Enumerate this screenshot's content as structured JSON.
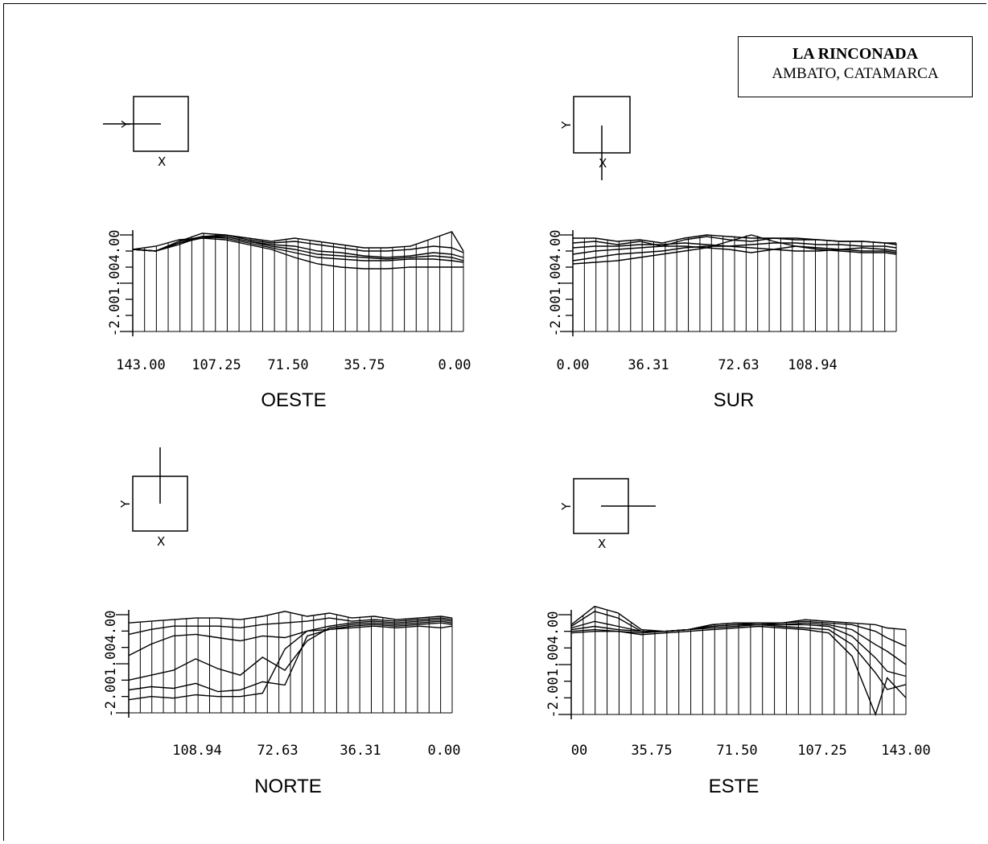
{
  "title": {
    "main": "LA RINCONADA",
    "sub": "AMBATO, CATAMARCA"
  },
  "colors": {
    "line": "#000000",
    "background": "#ffffff"
  },
  "orientation_inset": {
    "x_letter": "X",
    "y_letter": "Y"
  },
  "chart_data": [
    {
      "type": "line",
      "name": "OESTE",
      "title": "OESTE",
      "orientation": "left",
      "x_tick_labels": [
        "143.00",
        "107.25",
        "71.50",
        "35.75",
        "0.00"
      ],
      "y_tick_labels": [
        "-2.00",
        "1.00",
        "4.00"
      ],
      "ylim": [
        -2,
        4
      ],
      "xlim": [
        143,
        0
      ],
      "series": [
        {
          "x": [
            143,
            133,
            123,
            113,
            103,
            93,
            83,
            73,
            63,
            53,
            43,
            33,
            23,
            13,
            5,
            0
          ],
          "values": [
            3.1,
            3.3,
            3.7,
            3.8,
            3.7,
            3.4,
            3.1,
            2.6,
            2.2,
            2.0,
            1.9,
            1.9,
            2.0,
            2.0,
            2.0,
            2.0
          ]
        },
        {
          "x": [
            143,
            133,
            123,
            113,
            103,
            93,
            83,
            73,
            63,
            53,
            43,
            33,
            23,
            13,
            5,
            0
          ],
          "values": [
            3.1,
            3.0,
            3.6,
            3.9,
            3.8,
            3.5,
            3.2,
            2.9,
            2.6,
            2.5,
            2.4,
            2.4,
            2.5,
            2.5,
            2.4,
            2.3
          ]
        },
        {
          "x": [
            143,
            133,
            123,
            113,
            103,
            93,
            83,
            73,
            63,
            53,
            43,
            33,
            23,
            13,
            5,
            0
          ],
          "values": [
            3.1,
            3.0,
            3.5,
            3.8,
            3.9,
            3.6,
            3.4,
            3.3,
            3.0,
            2.9,
            2.7,
            2.6,
            2.7,
            2.9,
            2.8,
            2.6
          ]
        },
        {
          "x": [
            143,
            133,
            123,
            113,
            103,
            93,
            83,
            73,
            63,
            53,
            43,
            33,
            23,
            13,
            5,
            0
          ],
          "values": [
            3.1,
            3.0,
            3.4,
            3.9,
            4.0,
            3.7,
            3.5,
            3.6,
            3.4,
            3.2,
            3.0,
            3.0,
            3.1,
            3.3,
            3.2,
            2.9
          ]
        },
        {
          "x": [
            143,
            133,
            123,
            113,
            103,
            93,
            83,
            73,
            63,
            53,
            43,
            33,
            23,
            13,
            5,
            0
          ],
          "values": [
            3.1,
            3.0,
            3.6,
            4.1,
            4.0,
            3.8,
            3.6,
            3.8,
            3.6,
            3.4,
            3.2,
            3.2,
            3.3,
            3.8,
            4.2,
            3.0
          ]
        },
        {
          "x": [
            143,
            133,
            123,
            113,
            103,
            93,
            83,
            73,
            63,
            53,
            43,
            33,
            23,
            13,
            5,
            0
          ],
          "values": [
            3.1,
            3.0,
            3.5,
            3.9,
            3.9,
            3.6,
            3.3,
            3.1,
            2.8,
            2.7,
            2.6,
            2.5,
            2.6,
            2.7,
            2.6,
            2.4
          ]
        }
      ]
    },
    {
      "type": "line",
      "name": "SUR",
      "title": "SUR",
      "orientation": "down",
      "x_tick_labels": [
        "0.00",
        "36.31",
        "72.63",
        "108.94"
      ],
      "y_tick_labels": [
        "-2.00",
        "1.00",
        "4.00"
      ],
      "ylim": [
        -2,
        4
      ],
      "xlim": [
        0,
        145
      ],
      "series": [
        {
          "x": [
            0,
            10,
            20,
            30,
            40,
            50,
            60,
            70,
            80,
            90,
            100,
            110,
            120,
            130,
            140,
            145
          ],
          "values": [
            2.2,
            2.3,
            2.4,
            2.6,
            2.8,
            3.0,
            3.2,
            3.6,
            4.0,
            3.6,
            3.3,
            3.1,
            3.0,
            2.9,
            2.9,
            2.8
          ]
        },
        {
          "x": [
            0,
            10,
            20,
            30,
            40,
            50,
            60,
            70,
            80,
            90,
            100,
            110,
            120,
            130,
            140,
            145
          ],
          "values": [
            2.4,
            2.6,
            2.8,
            2.9,
            3.0,
            3.2,
            3.3,
            3.3,
            3.2,
            3.1,
            3.0,
            3.0,
            3.1,
            3.0,
            3.0,
            2.9
          ]
        },
        {
          "x": [
            0,
            10,
            20,
            30,
            40,
            50,
            60,
            70,
            80,
            90,
            100,
            110,
            120,
            130,
            140,
            145
          ],
          "values": [
            2.8,
            3.0,
            3.1,
            3.2,
            3.3,
            3.3,
            3.2,
            3.1,
            2.9,
            3.1,
            3.3,
            3.2,
            3.1,
            3.2,
            3.1,
            3.0
          ]
        },
        {
          "x": [
            0,
            10,
            20,
            30,
            40,
            50,
            60,
            70,
            80,
            90,
            100,
            110,
            120,
            130,
            140,
            145
          ],
          "values": [
            3.2,
            3.3,
            3.3,
            3.4,
            3.4,
            3.5,
            3.4,
            3.3,
            3.4,
            3.5,
            3.5,
            3.4,
            3.4,
            3.3,
            3.3,
            3.2
          ]
        },
        {
          "x": [
            0,
            10,
            20,
            30,
            40,
            50,
            60,
            70,
            80,
            90,
            100,
            110,
            120,
            130,
            140,
            145
          ],
          "values": [
            3.5,
            3.6,
            3.4,
            3.6,
            3.3,
            3.7,
            3.9,
            3.7,
            3.6,
            3.8,
            3.7,
            3.7,
            3.6,
            3.6,
            3.5,
            3.4
          ]
        },
        {
          "x": [
            0,
            10,
            20,
            30,
            40,
            50,
            60,
            70,
            80,
            90,
            100,
            110,
            120,
            130,
            140,
            145
          ],
          "values": [
            3.8,
            3.8,
            3.6,
            3.7,
            3.5,
            3.8,
            4.0,
            3.9,
            3.8,
            3.8,
            3.8,
            3.7,
            3.6,
            3.6,
            3.5,
            3.5
          ]
        }
      ]
    },
    {
      "type": "line",
      "name": "NORTE",
      "title": "NORTE",
      "orientation": "up",
      "x_tick_labels": [
        "108.94",
        "72.63",
        "36.31",
        "0.00"
      ],
      "y_tick_labels": [
        "-2.00",
        "1.00",
        "4.00"
      ],
      "ylim": [
        -2,
        4
      ],
      "xlim": [
        145,
        0
      ],
      "series": [
        {
          "x": [
            145,
            135,
            125,
            115,
            105,
            95,
            85,
            75,
            65,
            55,
            45,
            35,
            25,
            15,
            5,
            0
          ],
          "values": [
            -1.2,
            -1.0,
            -1.1,
            -0.9,
            -1.0,
            -1.0,
            -0.8,
            1.9,
            3.0,
            3.1,
            3.2,
            3.3,
            3.2,
            3.3,
            3.2,
            3.3
          ]
        },
        {
          "x": [
            145,
            135,
            125,
            115,
            105,
            95,
            85,
            75,
            65,
            55,
            45,
            35,
            25,
            15,
            5,
            0
          ],
          "values": [
            -0.6,
            -0.4,
            -0.5,
            -0.2,
            -0.7,
            -0.6,
            -0.1,
            -0.3,
            2.7,
            3.1,
            3.3,
            3.4,
            3.3,
            3.4,
            3.5,
            3.4
          ]
        },
        {
          "x": [
            145,
            135,
            125,
            115,
            105,
            95,
            85,
            75,
            65,
            55,
            45,
            35,
            25,
            15,
            5,
            0
          ],
          "values": [
            0.0,
            0.3,
            0.6,
            1.3,
            0.7,
            0.3,
            1.4,
            0.6,
            2.4,
            3.2,
            3.4,
            3.5,
            3.4,
            3.5,
            3.6,
            3.5
          ]
        },
        {
          "x": [
            145,
            135,
            125,
            115,
            105,
            95,
            85,
            75,
            65,
            55,
            45,
            35,
            25,
            15,
            5,
            0
          ],
          "values": [
            1.5,
            2.2,
            2.7,
            2.8,
            2.6,
            2.4,
            2.7,
            2.6,
            3.0,
            3.3,
            3.5,
            3.6,
            3.5,
            3.6,
            3.7,
            3.6
          ]
        },
        {
          "x": [
            145,
            135,
            125,
            115,
            105,
            95,
            85,
            75,
            65,
            55,
            45,
            35,
            25,
            15,
            5,
            0
          ],
          "values": [
            2.8,
            3.1,
            3.3,
            3.3,
            3.3,
            3.2,
            3.4,
            3.5,
            3.6,
            3.8,
            3.6,
            3.7,
            3.6,
            3.7,
            3.8,
            3.7
          ]
        },
        {
          "x": [
            145,
            135,
            125,
            115,
            105,
            95,
            85,
            75,
            65,
            55,
            45,
            35,
            25,
            15,
            5,
            0
          ],
          "values": [
            3.5,
            3.6,
            3.7,
            3.8,
            3.8,
            3.7,
            3.9,
            4.2,
            3.9,
            4.1,
            3.8,
            3.9,
            3.7,
            3.8,
            3.9,
            3.8
          ]
        }
      ]
    },
    {
      "type": "line",
      "name": "ESTE",
      "title": "ESTE",
      "orientation": "right",
      "x_tick_labels": [
        "00",
        "35.75",
        "71.50",
        "107.25",
        "143.00"
      ],
      "y_tick_labels": [
        "-2.00",
        "1.00",
        "4.00"
      ],
      "ylim": [
        -2,
        4
      ],
      "xlim": [
        0,
        143
      ],
      "series": [
        {
          "x": [
            0,
            10,
            20,
            30,
            40,
            50,
            60,
            70,
            80,
            90,
            100,
            110,
            120,
            130,
            135,
            143
          ],
          "values": [
            2.9,
            3.0,
            3.0,
            2.8,
            2.9,
            3.0,
            3.1,
            3.2,
            3.3,
            3.2,
            3.1,
            2.9,
            1.5,
            -2.0,
            0.2,
            -1.0
          ]
        },
        {
          "x": [
            0,
            10,
            20,
            30,
            40,
            50,
            60,
            70,
            80,
            90,
            100,
            110,
            120,
            130,
            135,
            143
          ],
          "values": [
            3.0,
            3.1,
            3.0,
            2.9,
            3.0,
            3.1,
            3.2,
            3.3,
            3.4,
            3.3,
            3.2,
            3.1,
            2.2,
            0.5,
            -0.5,
            -0.2
          ]
        },
        {
          "x": [
            0,
            10,
            20,
            30,
            40,
            50,
            60,
            70,
            80,
            90,
            100,
            110,
            120,
            130,
            135,
            143
          ],
          "values": [
            3.1,
            3.3,
            3.1,
            3.0,
            3.0,
            3.1,
            3.3,
            3.4,
            3.4,
            3.4,
            3.4,
            3.3,
            2.7,
            1.4,
            0.6,
            0.3
          ]
        },
        {
          "x": [
            0,
            10,
            20,
            30,
            40,
            50,
            60,
            70,
            80,
            90,
            100,
            110,
            120,
            130,
            135,
            143
          ],
          "values": [
            3.2,
            3.6,
            3.3,
            3.0,
            3.0,
            3.1,
            3.3,
            3.4,
            3.5,
            3.4,
            3.5,
            3.4,
            3.1,
            2.2,
            1.8,
            1.0
          ]
        },
        {
          "x": [
            0,
            10,
            20,
            30,
            40,
            50,
            60,
            70,
            80,
            90,
            100,
            110,
            120,
            130,
            135,
            143
          ],
          "values": [
            3.3,
            4.2,
            3.8,
            3.0,
            3.0,
            3.1,
            3.4,
            3.5,
            3.5,
            3.5,
            3.6,
            3.5,
            3.4,
            3.0,
            2.6,
            2.1
          ]
        },
        {
          "x": [
            0,
            10,
            20,
            30,
            40,
            50,
            60,
            70,
            80,
            90,
            100,
            110,
            120,
            130,
            135,
            143
          ],
          "values": [
            3.4,
            4.5,
            4.1,
            3.1,
            3.0,
            3.1,
            3.4,
            3.5,
            3.5,
            3.5,
            3.7,
            3.6,
            3.5,
            3.4,
            3.2,
            3.1
          ]
        }
      ]
    }
  ]
}
